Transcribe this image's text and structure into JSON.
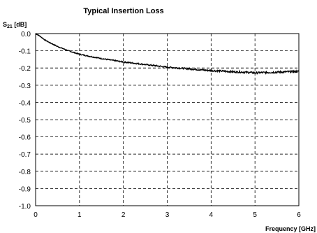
{
  "chart_data": {
    "type": "line",
    "title": "Typical Insertion Loss",
    "ylabel_main": "S",
    "ylabel_sub": "21",
    "ylabel_unit": " [dB]",
    "xlabel": "Frequency [GHz]",
    "xlim": [
      0,
      6
    ],
    "ylim": [
      -1.0,
      0.0
    ],
    "x_ticks": [
      "0",
      "1",
      "2",
      "3",
      "4",
      "5",
      "6"
    ],
    "y_ticks": [
      "0.0",
      "-0.1",
      "-0.2",
      "-0.3",
      "-0.4",
      "-0.5",
      "-0.6",
      "-0.7",
      "-0.8",
      "-0.9",
      "-1.0"
    ],
    "grid": true,
    "series": [
      {
        "x": [
          0,
          0.1,
          0.2,
          0.3,
          0.5,
          0.75,
          1.0,
          1.25,
          1.5,
          1.75,
          2.0,
          2.25,
          2.5,
          2.75,
          3.0,
          3.25,
          3.5,
          3.75,
          4.0,
          4.25,
          4.5,
          4.75,
          5.0,
          5.25,
          5.5,
          5.75,
          6.0
        ],
        "y": [
          0.0,
          -0.015,
          -0.035,
          -0.05,
          -0.075,
          -0.1,
          -0.12,
          -0.133,
          -0.145,
          -0.155,
          -0.165,
          -0.172,
          -0.18,
          -0.187,
          -0.195,
          -0.2,
          -0.205,
          -0.21,
          -0.215,
          -0.218,
          -0.222,
          -0.224,
          -0.228,
          -0.226,
          -0.224,
          -0.222,
          -0.22
        ],
        "noise_amplitude": 0.006
      }
    ],
    "colors": {
      "line": "#000000",
      "grid": "#000000",
      "background": "#ffffff"
    }
  }
}
